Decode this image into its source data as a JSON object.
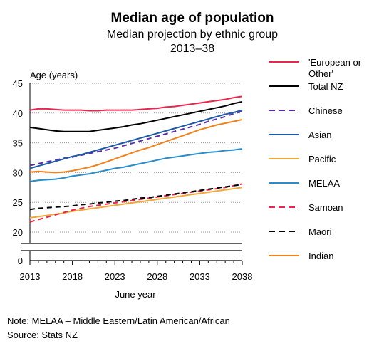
{
  "chart_data": {
    "type": "line",
    "title": "Median age of population",
    "subtitle": "Median projection by ethnic group",
    "period": "2013–38",
    "ylabel": "Age (years)",
    "xlabel": "June year",
    "ylim": [
      0,
      45
    ],
    "axis_break": true,
    "y_ticks": [
      0,
      20,
      25,
      30,
      35,
      40,
      45
    ],
    "x_ticks": [
      2013,
      2018,
      2023,
      2028,
      2033,
      2038
    ],
    "grid": "horizontal, dotted",
    "legend_placement": "right",
    "x": [
      2013,
      2014,
      2015,
      2016,
      2017,
      2018,
      2019,
      2020,
      2021,
      2022,
      2023,
      2024,
      2025,
      2026,
      2027,
      2028,
      2029,
      2030,
      2031,
      2032,
      2033,
      2034,
      2035,
      2036,
      2037,
      2038
    ],
    "series": [
      {
        "name": "'European or Other'",
        "color": "#e8264e",
        "dash": "solid",
        "values": [
          40.5,
          40.7,
          40.7,
          40.6,
          40.5,
          40.5,
          40.5,
          40.4,
          40.4,
          40.5,
          40.5,
          40.5,
          40.5,
          40.6,
          40.7,
          40.8,
          41.0,
          41.1,
          41.3,
          41.5,
          41.7,
          41.9,
          42.1,
          42.3,
          42.6,
          42.8
        ]
      },
      {
        "name": "Total NZ",
        "color": "#000000",
        "dash": "solid",
        "values": [
          37.6,
          37.4,
          37.2,
          37.0,
          36.9,
          36.9,
          36.9,
          36.9,
          37.1,
          37.3,
          37.5,
          37.7,
          38.0,
          38.2,
          38.5,
          38.8,
          39.1,
          39.4,
          39.7,
          40.0,
          40.3,
          40.6,
          40.9,
          41.2,
          41.6,
          41.9
        ]
      },
      {
        "name": "Chinese",
        "color": "#5b2fa3",
        "dash": "dash",
        "values": [
          31.2,
          31.5,
          31.8,
          32.1,
          32.4,
          32.6,
          32.9,
          33.2,
          33.5,
          33.8,
          34.1,
          34.5,
          34.9,
          35.3,
          35.7,
          36.1,
          36.5,
          36.9,
          37.3,
          37.7,
          38.1,
          38.6,
          39.0,
          39.4,
          39.9,
          40.3
        ]
      },
      {
        "name": "Asian",
        "color": "#1f5aa8",
        "dash": "solid",
        "values": [
          30.7,
          31.1,
          31.5,
          31.9,
          32.3,
          32.7,
          33.0,
          33.4,
          33.8,
          34.2,
          34.6,
          35.0,
          35.4,
          35.8,
          36.2,
          36.6,
          37.0,
          37.4,
          37.8,
          38.2,
          38.6,
          39.0,
          39.4,
          39.8,
          40.1,
          40.5
        ]
      },
      {
        "name": "Pacific",
        "color": "#f2a93b",
        "dash": "solid",
        "values": [
          22.4,
          22.6,
          22.8,
          23.0,
          23.2,
          23.5,
          23.7,
          23.9,
          24.1,
          24.3,
          24.5,
          24.7,
          24.9,
          25.1,
          25.3,
          25.5,
          25.7,
          25.9,
          26.1,
          26.3,
          26.5,
          26.7,
          26.9,
          27.1,
          27.3,
          27.5
        ]
      },
      {
        "name": "MELAA",
        "color": "#2a8cc9",
        "dash": "solid",
        "values": [
          28.5,
          28.7,
          28.8,
          28.9,
          29.1,
          29.4,
          29.6,
          29.8,
          30.1,
          30.4,
          30.7,
          30.9,
          31.2,
          31.5,
          31.8,
          32.1,
          32.4,
          32.6,
          32.8,
          33.0,
          33.2,
          33.4,
          33.5,
          33.7,
          33.8,
          34.0
        ]
      },
      {
        "name": "Samoan",
        "color": "#e8264e",
        "dash": "dash",
        "values": [
          21.7,
          22.1,
          22.5,
          22.9,
          23.3,
          23.7,
          24.0,
          24.3,
          24.5,
          24.7,
          24.9,
          25.1,
          25.3,
          25.5,
          25.7,
          25.9,
          26.1,
          26.3,
          26.5,
          26.7,
          26.9,
          27.1,
          27.3,
          27.5,
          27.8,
          28.1
        ]
      },
      {
        "name": "Māori",
        "color": "#000000",
        "dash": "dash",
        "values": [
          23.8,
          24.0,
          24.1,
          24.2,
          24.3,
          24.4,
          24.6,
          24.7,
          24.9,
          25.0,
          25.2,
          25.3,
          25.5,
          25.7,
          25.8,
          26.0,
          26.2,
          26.4,
          26.6,
          26.8,
          27.0,
          27.2,
          27.4,
          27.6,
          27.8,
          28.0
        ]
      },
      {
        "name": "Indian",
        "color": "#f0821e",
        "dash": "solid",
        "values": [
          30.1,
          30.2,
          30.1,
          30.0,
          30.1,
          30.3,
          30.6,
          30.9,
          31.3,
          31.8,
          32.3,
          32.8,
          33.3,
          33.8,
          34.2,
          34.7,
          35.2,
          35.7,
          36.2,
          36.7,
          37.2,
          37.6,
          38.0,
          38.3,
          38.6,
          38.9
        ]
      }
    ]
  },
  "footer": {
    "note": "Note: MELAA – Middle Eastern/Latin American/African",
    "source": "Source: Stats NZ"
  }
}
